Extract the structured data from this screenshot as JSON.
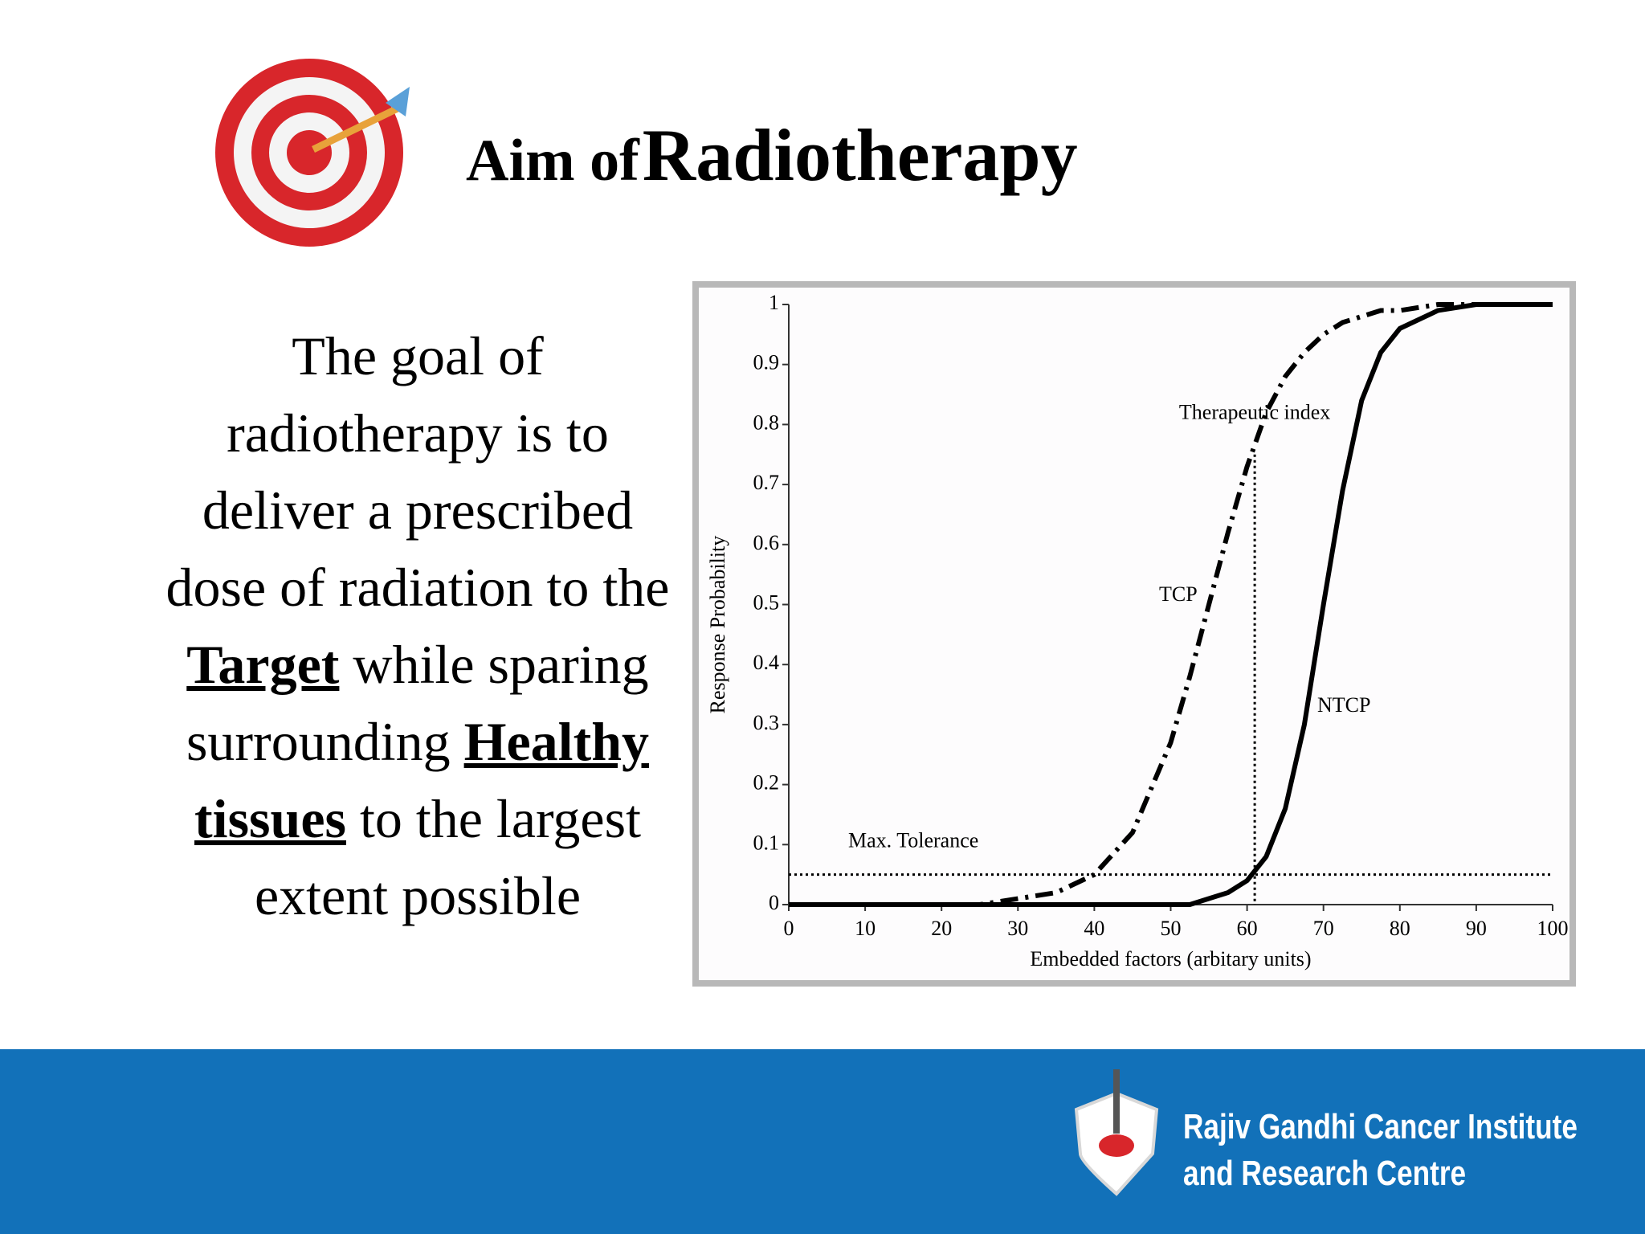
{
  "header": {
    "title": {
      "small": "Aim of",
      "large": "Radiotherapy"
    }
  },
  "body": {
    "runs": [
      "The goal of radiotherapy is to deliver a prescribed dose of radiation to the ",
      "Target",
      " while sparing surrounding ",
      "Healthy tissues",
      " to the largest extent possible"
    ]
  },
  "chart_data": {
    "type": "line",
    "x_label": "Embedded factors (arbitary units)",
    "y_label": "Response Probability",
    "x": [
      0,
      10,
      20,
      25,
      30,
      35,
      40,
      45,
      50,
      52.5,
      55,
      57.5,
      60,
      62.5,
      65,
      67.5,
      70,
      72.5,
      75,
      77.5,
      80,
      85,
      90,
      100
    ],
    "series": [
      {
        "name": "TCP",
        "color": "#000000",
        "dash": "dash-dot",
        "values": [
          0,
          0,
          0,
          0,
          0.01,
          0.02,
          0.05,
          0.12,
          0.27,
          0.38,
          0.5,
          0.62,
          0.73,
          0.82,
          0.88,
          0.92,
          0.95,
          0.97,
          0.98,
          0.99,
          0.99,
          1,
          1,
          1
        ]
      },
      {
        "name": "NTCP",
        "color": "#000000",
        "dash": "solid",
        "values": [
          0,
          0,
          0,
          0,
          0,
          0,
          0,
          0,
          0,
          0,
          0.01,
          0.02,
          0.04,
          0.08,
          0.16,
          0.3,
          0.5,
          0.69,
          0.84,
          0.92,
          0.96,
          0.99,
          1,
          1
        ]
      }
    ],
    "reference_lines": [
      {
        "label": "Max. Tolerance",
        "y": 0.05
      },
      {
        "label": "Therapeutic index",
        "x": 61,
        "y_top": 0.75
      }
    ],
    "xlim": [
      0,
      100
    ],
    "xticks": [
      0,
      10,
      20,
      30,
      40,
      50,
      60,
      70,
      80,
      90,
      100
    ],
    "ylim": [
      0,
      1
    ],
    "yticks": [
      0,
      0.1,
      0.2,
      0.3,
      0.4,
      0.5,
      0.6,
      0.7,
      0.8,
      0.9,
      1
    ]
  },
  "footer": {
    "institute": [
      "Rajiv Gandhi Cancer Institute",
      "and Research Centre"
    ]
  }
}
